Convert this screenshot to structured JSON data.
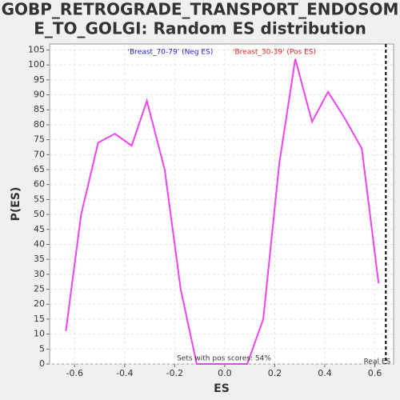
{
  "chart_data": {
    "type": "line",
    "title_lines": [
      "GOBP_RETROGRADE_TRANSPORT_ENDOSOM",
      "E_TO_GOLGI: Random ES distribution"
    ],
    "x_label": "ES",
    "y_label": "P(ES)",
    "legend": [
      {
        "text": "'Breast_70-79' (Neg ES)",
        "color": "#2222cc"
      },
      {
        "text": "'Breast_30-39' (Pos ES)",
        "color": "#dd2222"
      }
    ],
    "annotation": "Sets with pos scores: 54%",
    "real_es": {
      "x": 0.644,
      "label": "Real ES"
    },
    "series": [
      {
        "color": "#ee44ee",
        "x": [
          -0.635,
          -0.574,
          -0.506,
          -0.439,
          -0.372,
          -0.311,
          -0.24,
          -0.176,
          -0.112,
          -0.045,
          0.022,
          0.09,
          0.154,
          0.218,
          0.282,
          0.349,
          0.413,
          0.481,
          0.548,
          0.615
        ],
        "values": [
          11,
          50,
          74,
          77,
          73,
          88,
          65,
          25,
          0,
          0,
          0,
          0,
          15,
          67,
          102,
          81,
          91,
          82,
          72,
          27
        ]
      }
    ],
    "xlim": [
      -0.7,
      0.675
    ],
    "ylim": [
      0,
      107
    ],
    "xticks": [
      -0.6,
      -0.4,
      -0.2,
      {
        "value": 0,
        "label": "0.0"
      },
      0.2,
      0.4,
      0.6
    ],
    "yticks": [
      0,
      5,
      10,
      15,
      20,
      25,
      30,
      35,
      40,
      45,
      50,
      55,
      60,
      65,
      70,
      75,
      80,
      85,
      90,
      95,
      100,
      105
    ],
    "grid": true
  }
}
